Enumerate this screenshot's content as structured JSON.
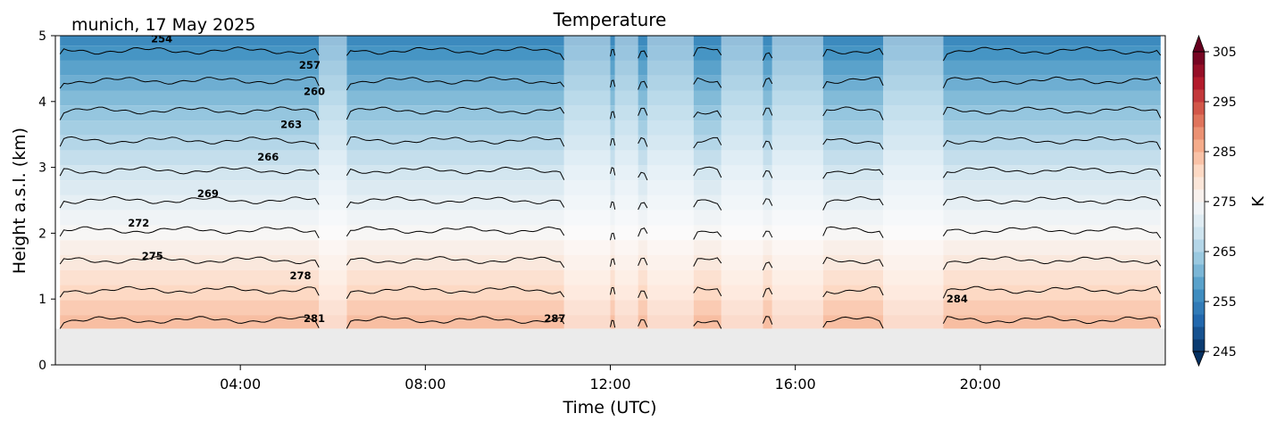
{
  "figure": {
    "station_date": "munich, 17 May 2025",
    "title": "Temperature",
    "xlabel": "Time (UTC)",
    "ylabel": "Height a.s.l. (km)",
    "colorbar_label": "K"
  },
  "chart_data": {
    "type": "heatmap",
    "title": "Temperature",
    "xlabel": "Time (UTC)",
    "ylabel": "Height a.s.l. (km)",
    "x_unit": "hours UTC",
    "xlim": [
      0,
      24
    ],
    "ylim": [
      0,
      5
    ],
    "x_ticks": [
      {
        "value": 4,
        "label": "04:00"
      },
      {
        "value": 8,
        "label": "08:00"
      },
      {
        "value": 12,
        "label": "12:00"
      },
      {
        "value": 16,
        "label": "16:00"
      },
      {
        "value": 20,
        "label": "20:00"
      }
    ],
    "y_ticks": [
      {
        "value": 0,
        "label": "0"
      },
      {
        "value": 1,
        "label": "1"
      },
      {
        "value": 2,
        "label": "2"
      },
      {
        "value": 3,
        "label": "3"
      },
      {
        "value": 4,
        "label": "4"
      },
      {
        "value": 5,
        "label": "5"
      }
    ],
    "ground_height_km": 0.55,
    "ground_color": "#ebebeb",
    "temperature_model": {
      "surface_temp_K": 288.5,
      "lapse_rate_K_per_km": 6.6
    },
    "data_periods_hours": [
      [
        0.1,
        5.7
      ],
      [
        6.3,
        11.0
      ],
      [
        12.0,
        12.1
      ],
      [
        12.6,
        12.8
      ],
      [
        13.8,
        14.4
      ],
      [
        15.3,
        15.5
      ],
      [
        16.6,
        17.9
      ],
      [
        19.2,
        23.9
      ]
    ],
    "faded_periods_hours": [
      [
        5.7,
        6.3
      ],
      [
        11.0,
        12.0
      ],
      [
        12.1,
        12.6
      ],
      [
        12.8,
        13.8
      ],
      [
        14.4,
        15.3
      ],
      [
        15.5,
        16.6
      ],
      [
        17.9,
        19.2
      ]
    ],
    "contour_levels_K": [
      254,
      257,
      260,
      263,
      266,
      269,
      272,
      275,
      278,
      281,
      284,
      287
    ],
    "contour_labels": [
      {
        "text": "254",
        "x": 2.3,
        "y": 4.9
      },
      {
        "text": "257",
        "x": 5.5,
        "y": 4.5
      },
      {
        "text": "260",
        "x": 5.6,
        "y": 4.1
      },
      {
        "text": "263",
        "x": 5.1,
        "y": 3.6
      },
      {
        "text": "266",
        "x": 4.6,
        "y": 3.1
      },
      {
        "text": "269",
        "x": 3.3,
        "y": 2.55
      },
      {
        "text": "272",
        "x": 1.8,
        "y": 2.1
      },
      {
        "text": "275",
        "x": 2.1,
        "y": 1.6
      },
      {
        "text": "278",
        "x": 5.3,
        "y": 1.3
      },
      {
        "text": "281",
        "x": 5.6,
        "y": 0.65
      },
      {
        "text": "287",
        "x": 10.8,
        "y": 0.65
      },
      {
        "text": "284",
        "x": 19.5,
        "y": 0.95
      }
    ],
    "colorbar": {
      "min": 245,
      "max": 305,
      "ticks": [
        245,
        255,
        265,
        275,
        285,
        295,
        305
      ],
      "label": "K",
      "extend": "both",
      "colormap": "RdBu_r",
      "colors": [
        "#053061",
        "#2166ac",
        "#4393c3",
        "#92c5de",
        "#d1e5f0",
        "#f7f7f7",
        "#fddbc7",
        "#f4a582",
        "#d6604d",
        "#b2182b",
        "#67001f"
      ]
    }
  }
}
